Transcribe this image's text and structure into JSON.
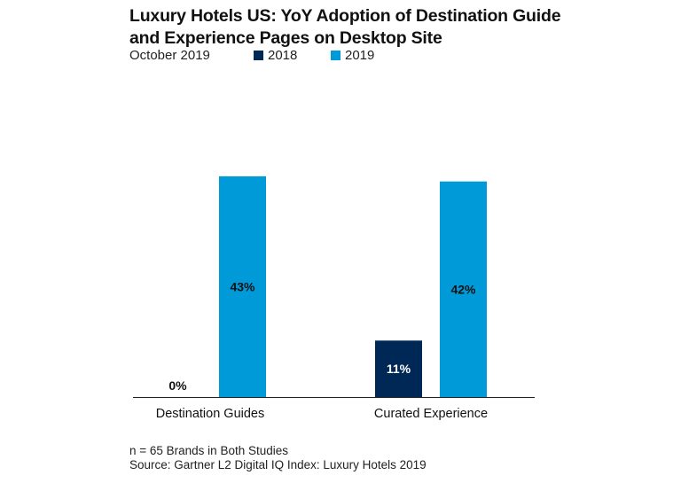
{
  "chart_data": {
    "type": "bar",
    "title": "Luxury Hotels US: YoY Adoption of Destination Guide and Experience Pages on Desktop Site",
    "title_lines": [
      "Luxury Hotels US: YoY Adoption of Destination Guide",
      "and Experience Pages on Desktop Site"
    ],
    "subtitle": "October 2019",
    "categories": [
      "Destination Guides",
      "Curated Experience"
    ],
    "series": [
      {
        "name": "2018",
        "values": [
          0,
          11
        ],
        "labels": [
          "0%",
          "11%"
        ],
        "color": "#002856"
      },
      {
        "name": "2019",
        "values": [
          43,
          42
        ],
        "labels": [
          "43%",
          "42%"
        ],
        "color": "#009ad8"
      }
    ],
    "ylim": [
      0,
      48
    ],
    "unit": "%",
    "grid": false,
    "legend_position": "top",
    "xlabel": "",
    "ylabel": ""
  },
  "footnotes": {
    "sample": "n = 65 Brands in Both Studies",
    "source": "Source: Gartner L2 Digital IQ Index: Luxury Hotels 2019"
  },
  "colors": {
    "axis": "#222222",
    "label_on_dark": "#ffffff",
    "label_on_light": "#111111"
  }
}
